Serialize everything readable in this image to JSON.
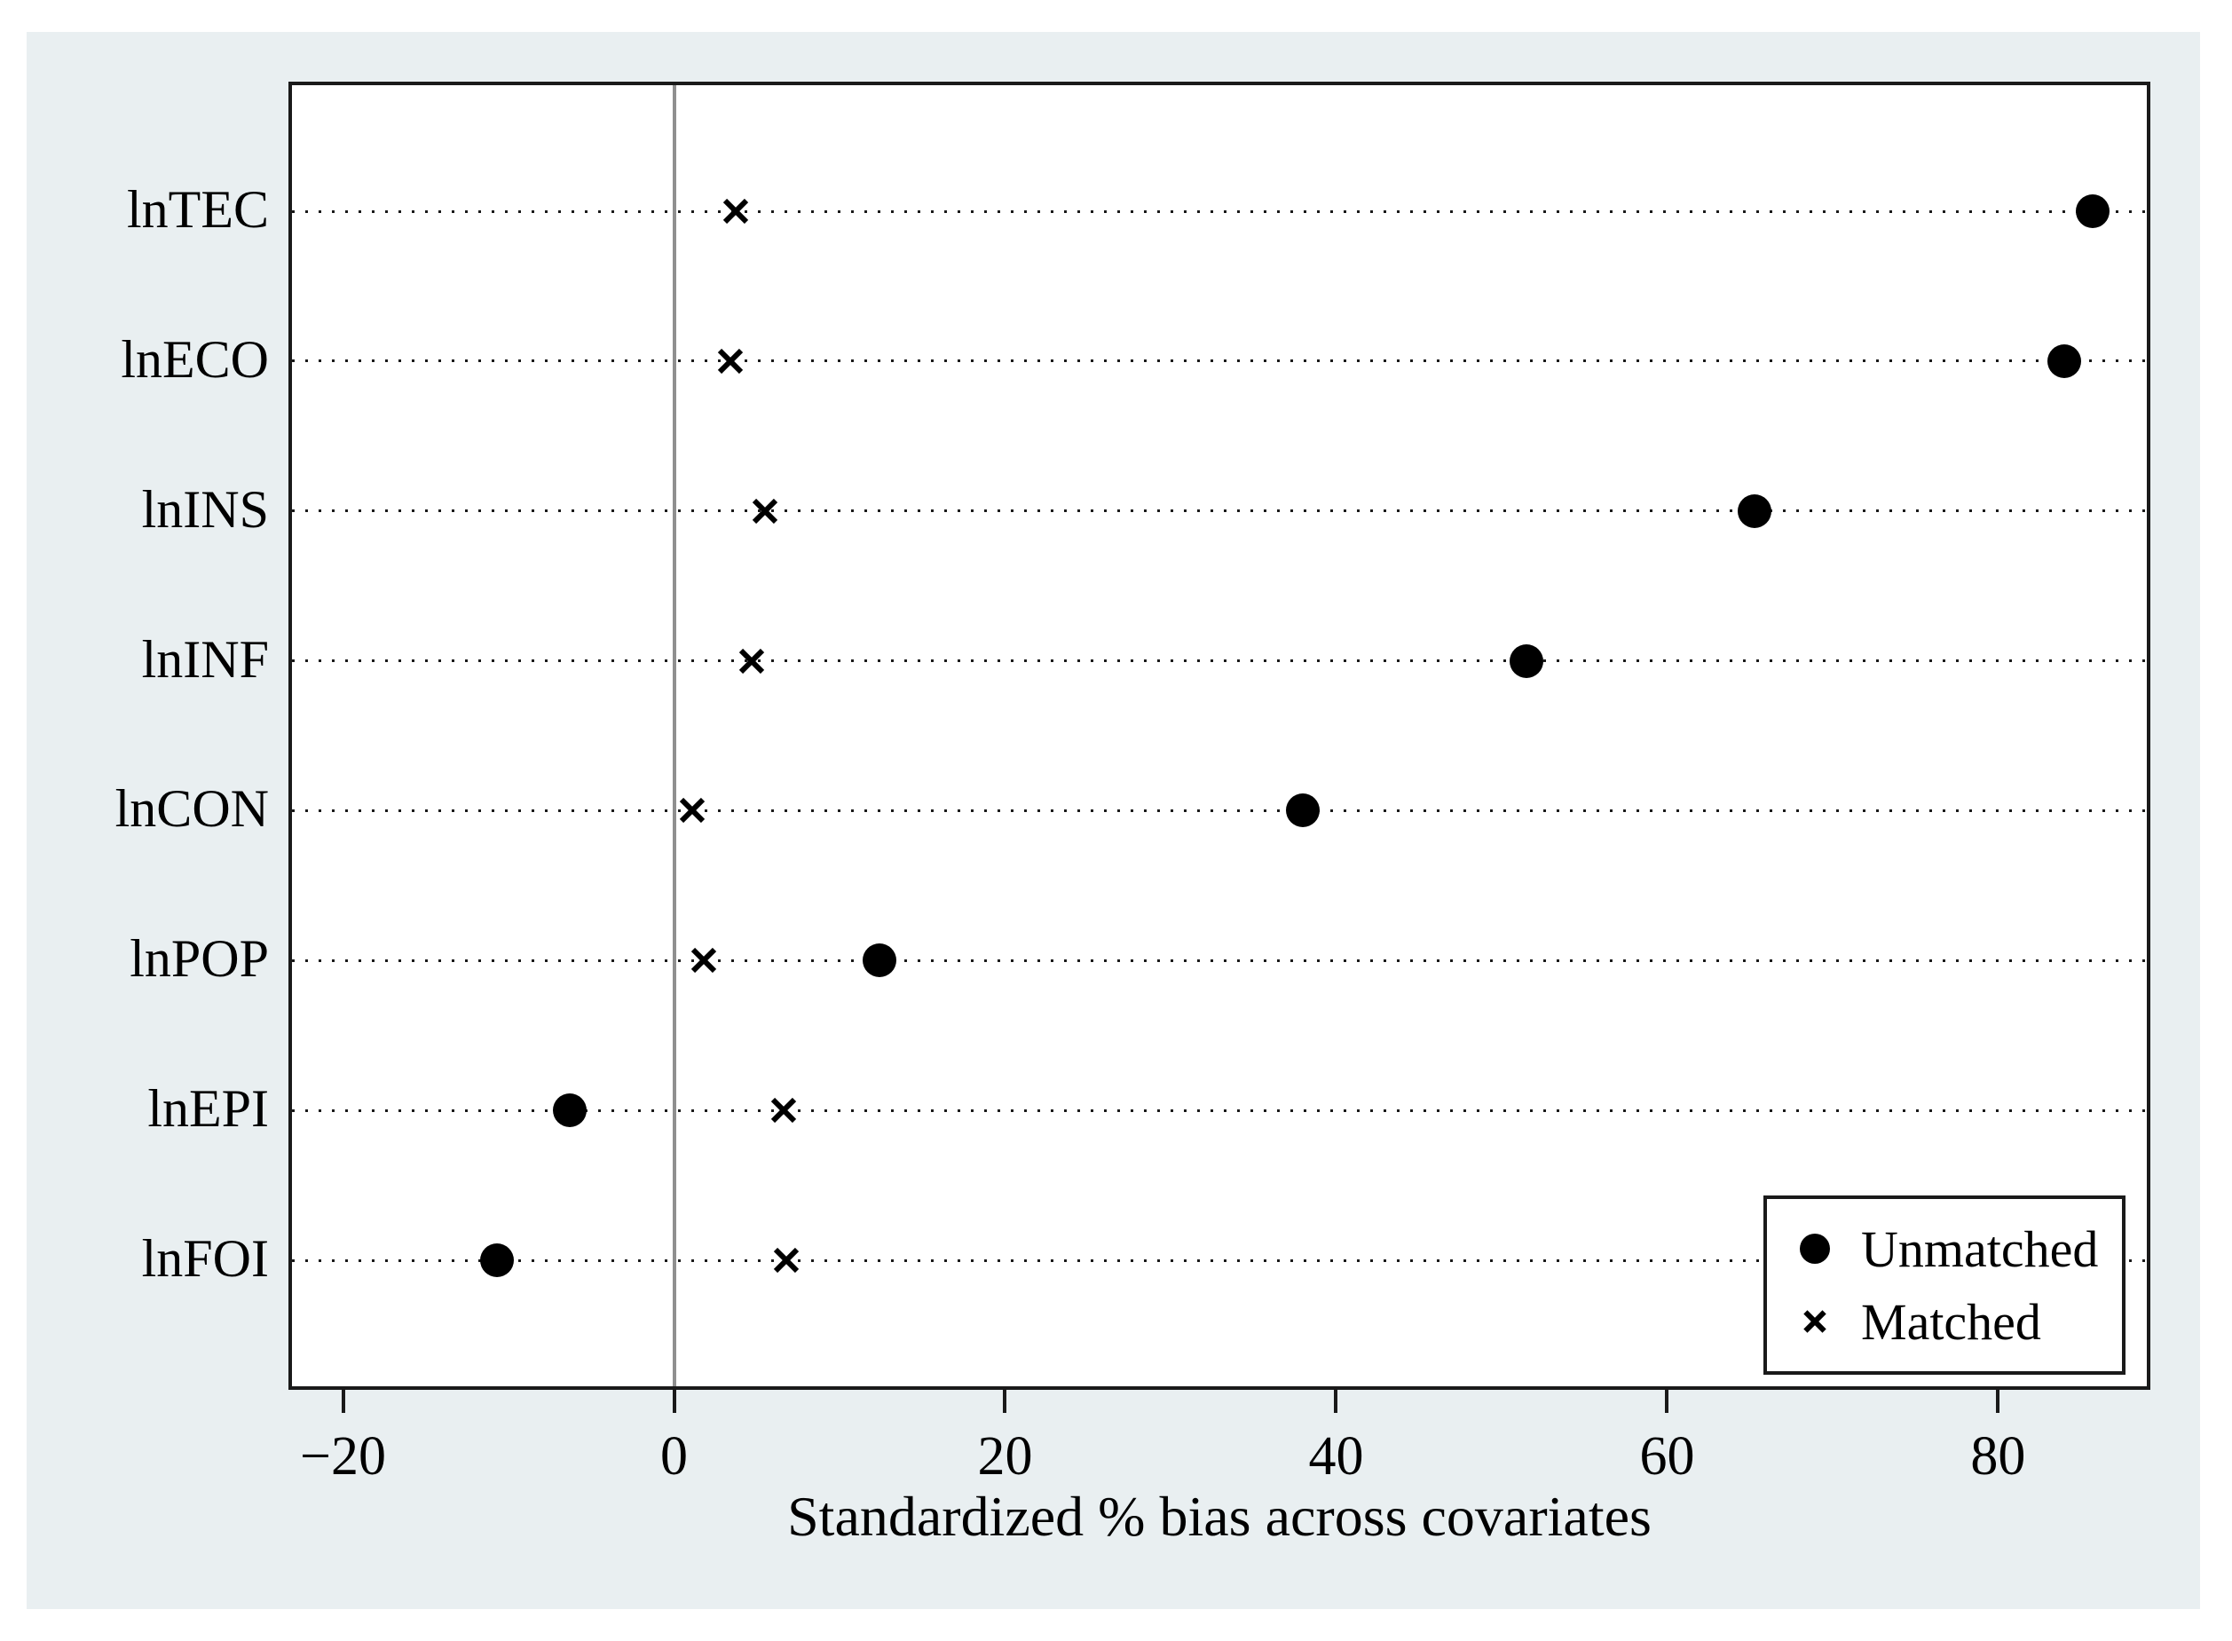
{
  "chart_data": {
    "type": "scatter",
    "subtype": "dot-plot-horizontal",
    "title": "",
    "xlabel": "Standardized % bias across covariates",
    "ylabel": "",
    "categories": [
      "lnTEC",
      "lnECO",
      "lnINS",
      "lnINF",
      "lnCON",
      "lnPOP",
      "lnEPI",
      "lnFOI"
    ],
    "series": [
      {
        "name": "Unmatched",
        "marker": "filled-circle",
        "values": [
          85.7,
          84.0,
          65.3,
          51.5,
          38.0,
          12.4,
          -6.3,
          -10.7
        ]
      },
      {
        "name": "Matched",
        "marker": "x-cross",
        "values": [
          3.7,
          3.4,
          5.5,
          4.7,
          1.1,
          1.8,
          6.6,
          6.8
        ]
      }
    ],
    "x_ticks": [
      -20,
      0,
      20,
      40,
      60,
      80
    ],
    "x_tick_labels": [
      "−20",
      "0",
      "20",
      "40",
      "60",
      "80"
    ],
    "xlim": [
      -23.3,
      89.2
    ],
    "reference_line_x": 0,
    "grid": "dotted horizontal line per category",
    "legend_position": "inside-bottom-right"
  },
  "colors": {
    "figure_background": "#e9eff1",
    "plot_background": "#ffffff",
    "axis_border": "#1a1a1a",
    "reference_line": "#8f8f8f",
    "marker": "#000000",
    "text": "#000000"
  }
}
